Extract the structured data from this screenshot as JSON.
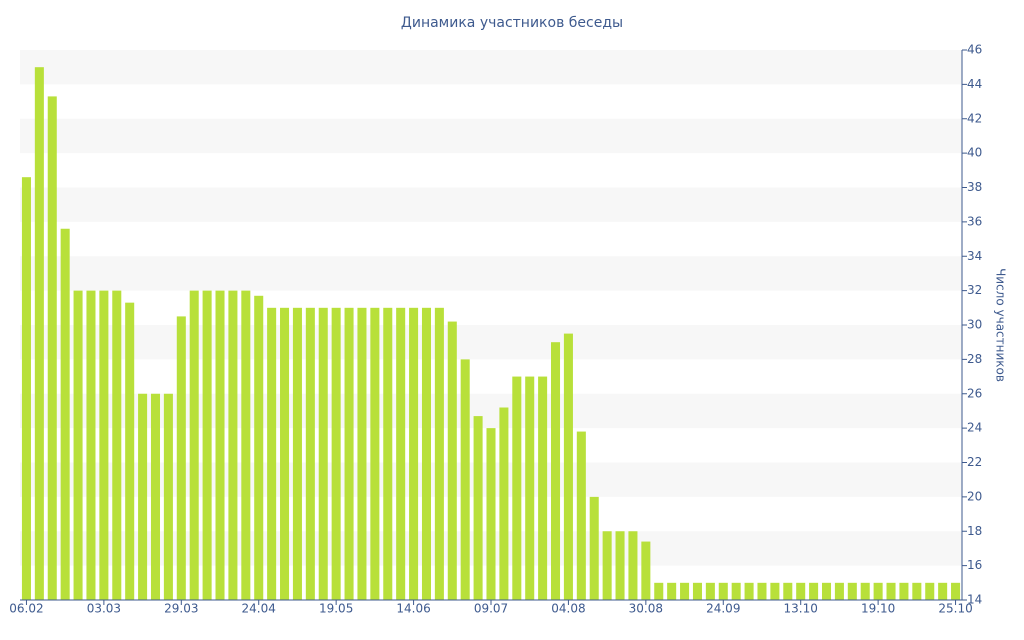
{
  "chart_data": {
    "type": "bar",
    "title": "Динамика участников беседы",
    "y_label": "Число участников",
    "categories": [
      "06.02",
      null,
      null,
      null,
      null,
      null,
      "03.03",
      null,
      null,
      null,
      null,
      null,
      "29.03",
      null,
      null,
      null,
      null,
      null,
      "24.04",
      null,
      null,
      null,
      null,
      null,
      "19.05",
      null,
      null,
      null,
      null,
      null,
      "14.06",
      null,
      null,
      null,
      null,
      null,
      "09.07",
      null,
      null,
      null,
      null,
      null,
      "04.08",
      null,
      null,
      null,
      null,
      null,
      "30.08",
      null,
      null,
      null,
      null,
      null,
      "24.09",
      null,
      null,
      null,
      null,
      null,
      "13.10",
      null,
      null,
      null,
      null,
      null,
      "19.10",
      null,
      null,
      null,
      null,
      null,
      "25.10"
    ],
    "values": [
      38.6,
      45,
      43.3,
      35.6,
      32,
      32,
      32,
      32,
      31.3,
      26,
      26,
      26,
      30.5,
      32,
      32,
      32,
      32,
      32,
      31.7,
      31,
      31,
      31,
      31,
      31,
      31,
      31,
      31,
      31,
      31,
      31,
      31,
      31,
      31,
      30.2,
      28,
      24.7,
      24,
      25.2,
      27,
      27,
      27,
      29,
      29.5,
      23.8,
      20,
      18,
      18,
      18,
      17.4,
      15,
      15,
      15,
      15,
      15,
      15,
      15,
      15,
      15,
      15,
      15,
      15,
      15,
      15,
      15,
      15,
      15,
      15,
      15,
      15,
      15,
      15,
      15,
      15
    ],
    "color": "#b8e03a",
    "ylim": [
      14,
      46
    ],
    "yticks": [
      14,
      16,
      18,
      20,
      22,
      24,
      26,
      28,
      30,
      32,
      34,
      36,
      38,
      40,
      42,
      44,
      46
    ],
    "y_axis_side": "right",
    "grid": true
  }
}
